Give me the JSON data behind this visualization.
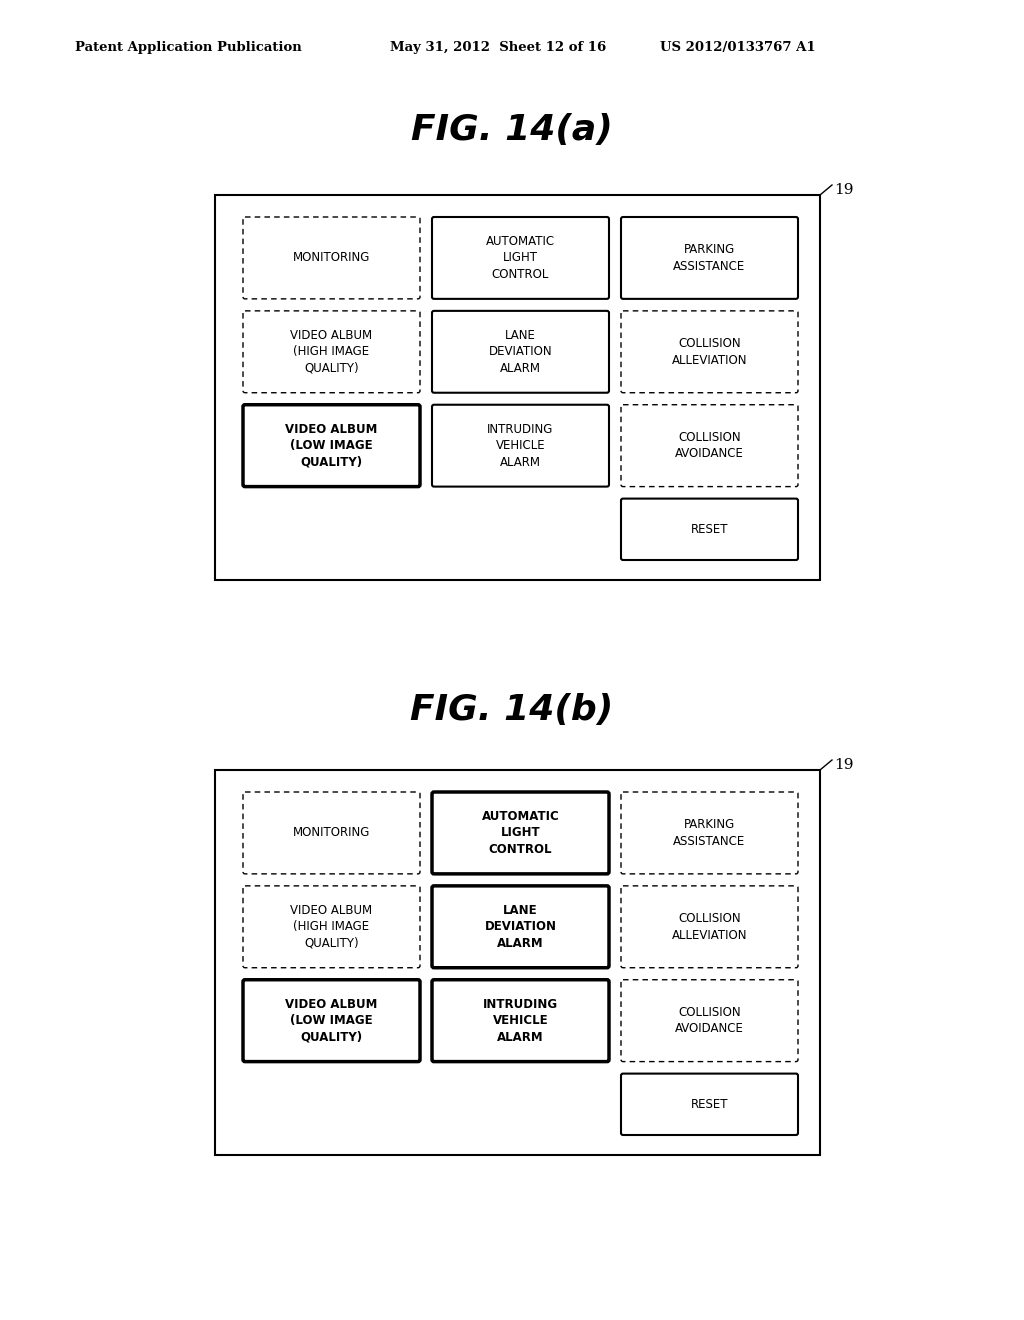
{
  "bg_color": "#ffffff",
  "header_left": "Patent Application Publication",
  "header_mid": "May 31, 2012  Sheet 12 of 16",
  "header_right": "US 2012/0133767 A1",
  "fig_a_title": "FIG. 14(a)",
  "fig_b_title": "FIG. 14(b)",
  "label_19": "19",
  "diagrams": [
    {
      "name": "a",
      "buttons": [
        {
          "label": "MONITORING",
          "col": 0,
          "row": 0,
          "style": "dashed"
        },
        {
          "label": "AUTOMATIC\nLIGHT\nCONTROL",
          "col": 1,
          "row": 0,
          "style": "solid"
        },
        {
          "label": "PARKING\nASSISTANCE",
          "col": 2,
          "row": 0,
          "style": "solid"
        },
        {
          "label": "VIDEO ALBUM\n(HIGH IMAGE\nQUALITY)",
          "col": 0,
          "row": 1,
          "style": "dashed"
        },
        {
          "label": "LANE\nDEVIATION\nALARM",
          "col": 1,
          "row": 1,
          "style": "solid"
        },
        {
          "label": "COLLISION\nALLEVIATION",
          "col": 2,
          "row": 1,
          "style": "dashed"
        },
        {
          "label": "VIDEO ALBUM\n(LOW IMAGE\nQUALITY)",
          "col": 0,
          "row": 2,
          "style": "solid_thick"
        },
        {
          "label": "INTRUDING\nVEHICLE\nALARM",
          "col": 1,
          "row": 2,
          "style": "solid"
        },
        {
          "label": "COLLISION\nAVOIDANCE",
          "col": 2,
          "row": 2,
          "style": "dashed"
        },
        {
          "label": "RESET",
          "col": 2,
          "row": 3,
          "style": "solid"
        }
      ]
    },
    {
      "name": "b",
      "buttons": [
        {
          "label": "MONITORING",
          "col": 0,
          "row": 0,
          "style": "dashed"
        },
        {
          "label": "AUTOMATIC\nLIGHT\nCONTROL",
          "col": 1,
          "row": 0,
          "style": "solid_thick"
        },
        {
          "label": "PARKING\nASSISTANCE",
          "col": 2,
          "row": 0,
          "style": "dashed"
        },
        {
          "label": "VIDEO ALBUM\n(HIGH IMAGE\nQUALITY)",
          "col": 0,
          "row": 1,
          "style": "dashed"
        },
        {
          "label": "LANE\nDEVIATION\nALARM",
          "col": 1,
          "row": 1,
          "style": "solid_thick"
        },
        {
          "label": "COLLISION\nALLEVIATION",
          "col": 2,
          "row": 1,
          "style": "dashed"
        },
        {
          "label": "VIDEO ALBUM\n(LOW IMAGE\nQUALITY)",
          "col": 0,
          "row": 2,
          "style": "solid_thick"
        },
        {
          "label": "INTRUDING\nVEHICLE\nALARM",
          "col": 1,
          "row": 2,
          "style": "solid_thick"
        },
        {
          "label": "COLLISION\nAVOIDANCE",
          "col": 2,
          "row": 2,
          "style": "dashed"
        },
        {
          "label": "RESET",
          "col": 2,
          "row": 3,
          "style": "solid"
        }
      ]
    }
  ]
}
